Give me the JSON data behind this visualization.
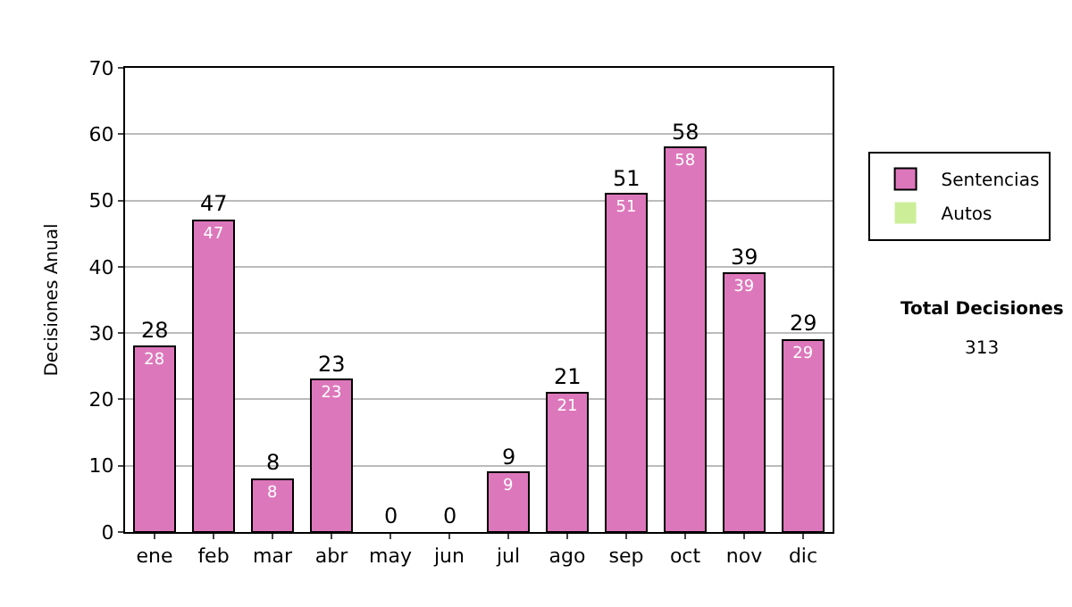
{
  "chart_data": {
    "type": "bar",
    "stacked": true,
    "ylabel": "Decisiones Anual",
    "categories": [
      "ene",
      "feb",
      "mar",
      "abr",
      "may",
      "jun",
      "jul",
      "ago",
      "sep",
      "oct",
      "nov",
      "dic"
    ],
    "series": [
      {
        "name": "Sentencias",
        "color": "#dd77bb",
        "values": [
          28,
          47,
          8,
          23,
          0,
          0,
          9,
          21,
          51,
          58,
          39,
          29
        ],
        "value_labels": [
          "28",
          "47",
          "8",
          "23",
          null,
          null,
          "9",
          "21",
          "51",
          "58",
          "39",
          "29"
        ]
      },
      {
        "name": "Autos",
        "color": "#ccee99",
        "values": [
          0,
          0,
          0,
          0,
          0,
          0,
          0,
          0,
          0,
          0,
          0,
          0
        ]
      }
    ],
    "totals": [
      "28",
      "47",
      "8",
      "23",
      "0",
      "0",
      "9",
      "21",
      "51",
      "58",
      "39",
      "29"
    ],
    "ylim": [
      0,
      70
    ],
    "yticks": [
      0,
      10,
      20,
      30,
      40,
      50,
      60,
      70
    ],
    "grid": "y",
    "legend": "right",
    "annotations": [
      "Total Decisiones",
      "313"
    ]
  }
}
